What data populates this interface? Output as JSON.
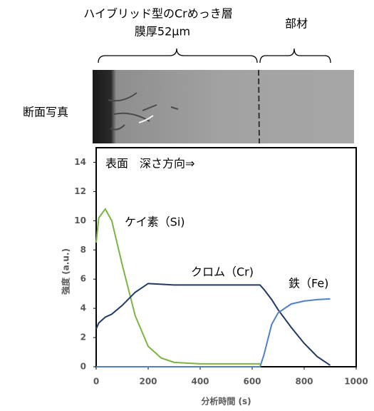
{
  "chart_data": {
    "type": "line",
    "header_labels": [
      "ハイブリッド型のCrめっき層",
      "膜厚52μm",
      "部材"
    ],
    "photo_label": "断面写真",
    "annotations": [
      "表面　深さ方向⇒",
      "ケイ素（Si)",
      "クロム（Cr)",
      "鉄（Fe)"
    ],
    "x_label": "分析時間 (s)",
    "y_label": "強度 (a.u.)",
    "x": [
      0,
      10,
      35,
      60,
      100,
      150,
      200,
      250,
      300,
      400,
      500,
      600,
      630,
      645,
      675,
      700,
      750,
      800,
      850,
      900
    ],
    "series": [
      {
        "name": "ケイ素（Si)",
        "color": "#7cb342",
        "values": [
          8.5,
          10.2,
          10.8,
          10,
          7,
          3.5,
          1.4,
          0.6,
          0.3,
          0.2,
          0.2,
          0.2,
          0.2,
          null,
          null,
          null,
          null,
          null,
          null,
          null
        ]
      },
      {
        "name": "クロム（Cr)",
        "color": "#203864",
        "values": [
          2.6,
          3.0,
          3.4,
          3.6,
          4.2,
          5.1,
          5.7,
          5.65,
          5.6,
          5.6,
          5.6,
          5.6,
          5.6,
          5.3,
          4.6,
          3.9,
          2.7,
          1.6,
          0.7,
          0.1
        ]
      },
      {
        "name": "鉄（Fe)",
        "color": "#4f81c7",
        "values": [
          0,
          0,
          0,
          0,
          0,
          0,
          0,
          0,
          0,
          0,
          0,
          0,
          0,
          0.8,
          2.9,
          3.7,
          4.3,
          4.5,
          4.6,
          4.65
        ]
      }
    ],
    "xlim": [
      0,
      1000
    ],
    "xticks": [
      0,
      200,
      400,
      600,
      800,
      1000
    ],
    "ylim": [
      0,
      15
    ],
    "yticks": [
      0,
      2,
      4,
      6,
      8,
      10,
      12,
      14
    ]
  }
}
